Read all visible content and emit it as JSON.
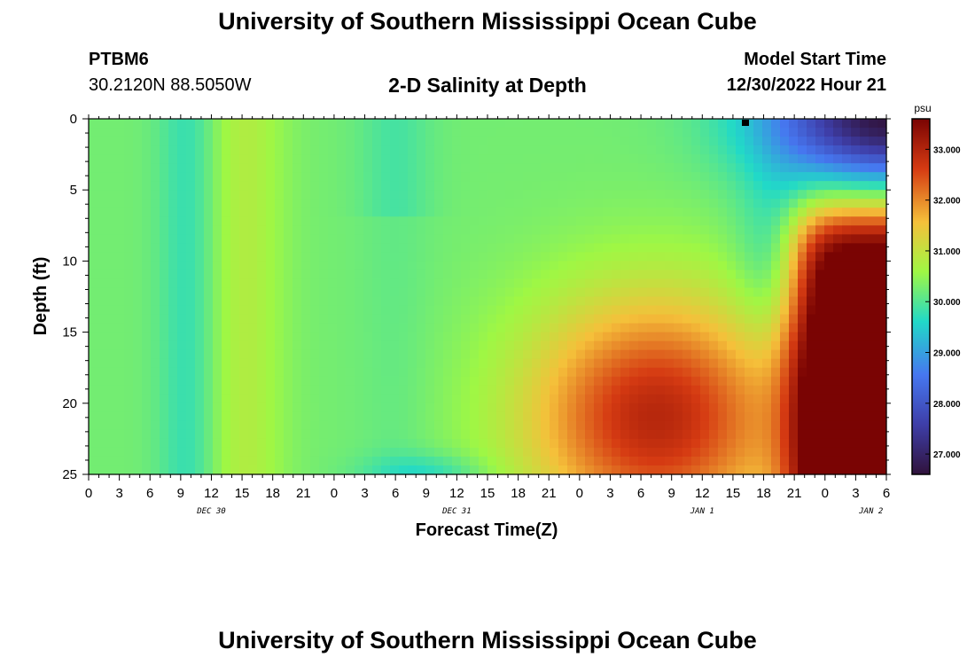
{
  "page": {
    "title": "University of Southern Mississippi Ocean Cube",
    "footer_title": "University of Southern Mississippi Ocean Cube",
    "station_id": "PTBM6",
    "coordinates": "30.2120N  88.5050W",
    "subtitle": "2-D Salinity at Depth",
    "model_start_label": "Model Start Time",
    "model_start_value": "12/30/2022 Hour 21"
  },
  "chart_data": {
    "type": "heatmap",
    "title": "2-D Salinity at Depth",
    "xlabel": "Forecast Time(Z)",
    "ylabel": "Depth (ft)",
    "x_ticks": [
      "0",
      "3",
      "6",
      "9",
      "12",
      "15",
      "18",
      "21",
      "0",
      "3",
      "6",
      "9",
      "12",
      "15",
      "18",
      "21",
      "0",
      "3",
      "6",
      "9",
      "12",
      "15",
      "18",
      "21",
      "0",
      "3",
      "6"
    ],
    "x_dates": [
      {
        "label": "DEC 30",
        "tick_index": 4
      },
      {
        "label": "DEC 31",
        "tick_index": 12
      },
      {
        "label": "JAN 1",
        "tick_index": 20
      },
      {
        "label": "JAN 2",
        "tick_index": 25.5
      }
    ],
    "y_ticks": [
      "0",
      "5",
      "10",
      "15",
      "20",
      "25"
    ],
    "ylim": [
      0,
      25
    ],
    "colorbar": {
      "unit": "psu",
      "min": 26.6,
      "max": 33.6,
      "ticks": [
        "27.000",
        "28.000",
        "29.000",
        "30.000",
        "31.000",
        "32.000",
        "33.000"
      ]
    }
  }
}
